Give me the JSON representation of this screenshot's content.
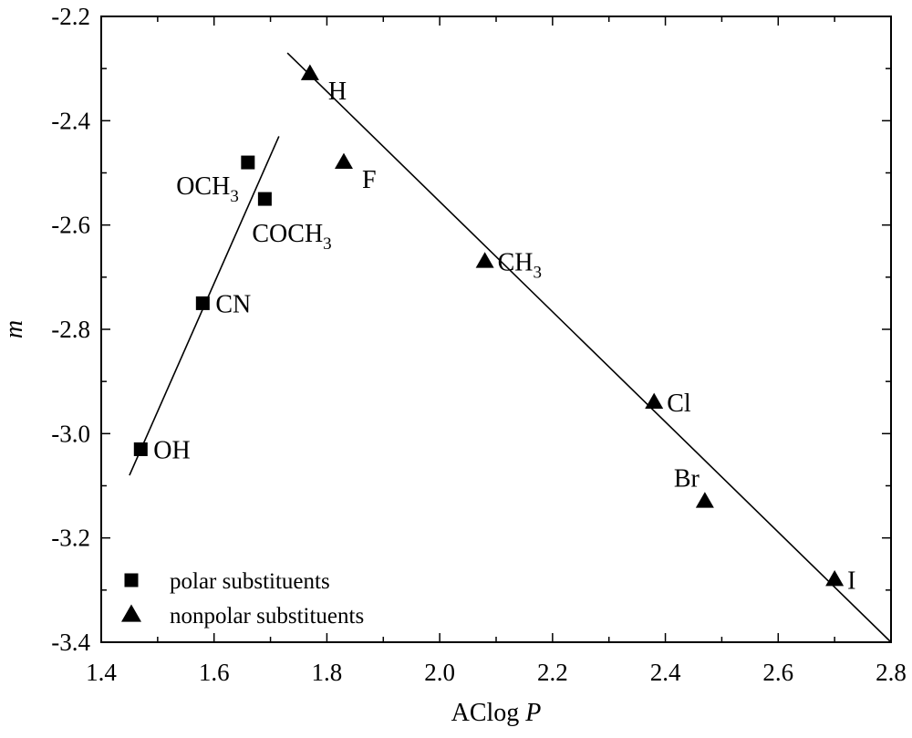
{
  "chart_data": {
    "type": "scatter",
    "xlabel": {
      "main": "AClog ",
      "italic": "P"
    },
    "ylabel": "m",
    "xlim": [
      1.4,
      2.8
    ],
    "ylim": [
      -3.4,
      -2.2
    ],
    "xticks": [
      "1.4",
      "1.6",
      "1.8",
      "2.0",
      "2.2",
      "2.4",
      "2.6",
      "2.8"
    ],
    "yticks": [
      "-2.2",
      "-2.4",
      "-2.6",
      "-2.8",
      "-3.0",
      "-3.2",
      "-3.4"
    ],
    "grid": false,
    "legend_position": "bottom-left",
    "series": [
      {
        "name": "polar substituents",
        "marker": "square",
        "color": "#000000",
        "points": [
          {
            "x": 1.66,
            "y": -2.48,
            "label": "OCH",
            "sub": "3",
            "label_pos": "left-below"
          },
          {
            "x": 1.69,
            "y": -2.55,
            "label": "COCH",
            "sub": "3",
            "label_pos": "below"
          },
          {
            "x": 1.58,
            "y": -2.75,
            "label": "CN",
            "sub": "",
            "label_pos": "right"
          },
          {
            "x": 1.47,
            "y": -3.03,
            "label": "OH",
            "sub": "",
            "label_pos": "right"
          }
        ],
        "fit_line": {
          "x": [
            1.45,
            1.715
          ],
          "y": [
            -3.08,
            -2.43
          ]
        }
      },
      {
        "name": "nonpolar substituents",
        "marker": "triangle",
        "color": "#000000",
        "points": [
          {
            "x": 1.77,
            "y": -2.31,
            "label": "H",
            "sub": "",
            "label_pos": "right-below"
          },
          {
            "x": 1.83,
            "y": -2.48,
            "label": "F",
            "sub": "",
            "label_pos": "right-below"
          },
          {
            "x": 2.08,
            "y": -2.67,
            "label": "CH",
            "sub": "3",
            "label_pos": "right"
          },
          {
            "x": 2.38,
            "y": -2.94,
            "label": "Cl",
            "sub": "",
            "label_pos": "right"
          },
          {
            "x": 2.47,
            "y": -3.13,
            "label": "Br",
            "sub": "",
            "label_pos": "above-left"
          },
          {
            "x": 2.7,
            "y": -3.28,
            "label": "I",
            "sub": "",
            "label_pos": "right"
          }
        ],
        "fit_line": {
          "x": [
            1.73,
            2.8
          ],
          "y": [
            -2.27,
            -3.4
          ]
        }
      }
    ]
  }
}
